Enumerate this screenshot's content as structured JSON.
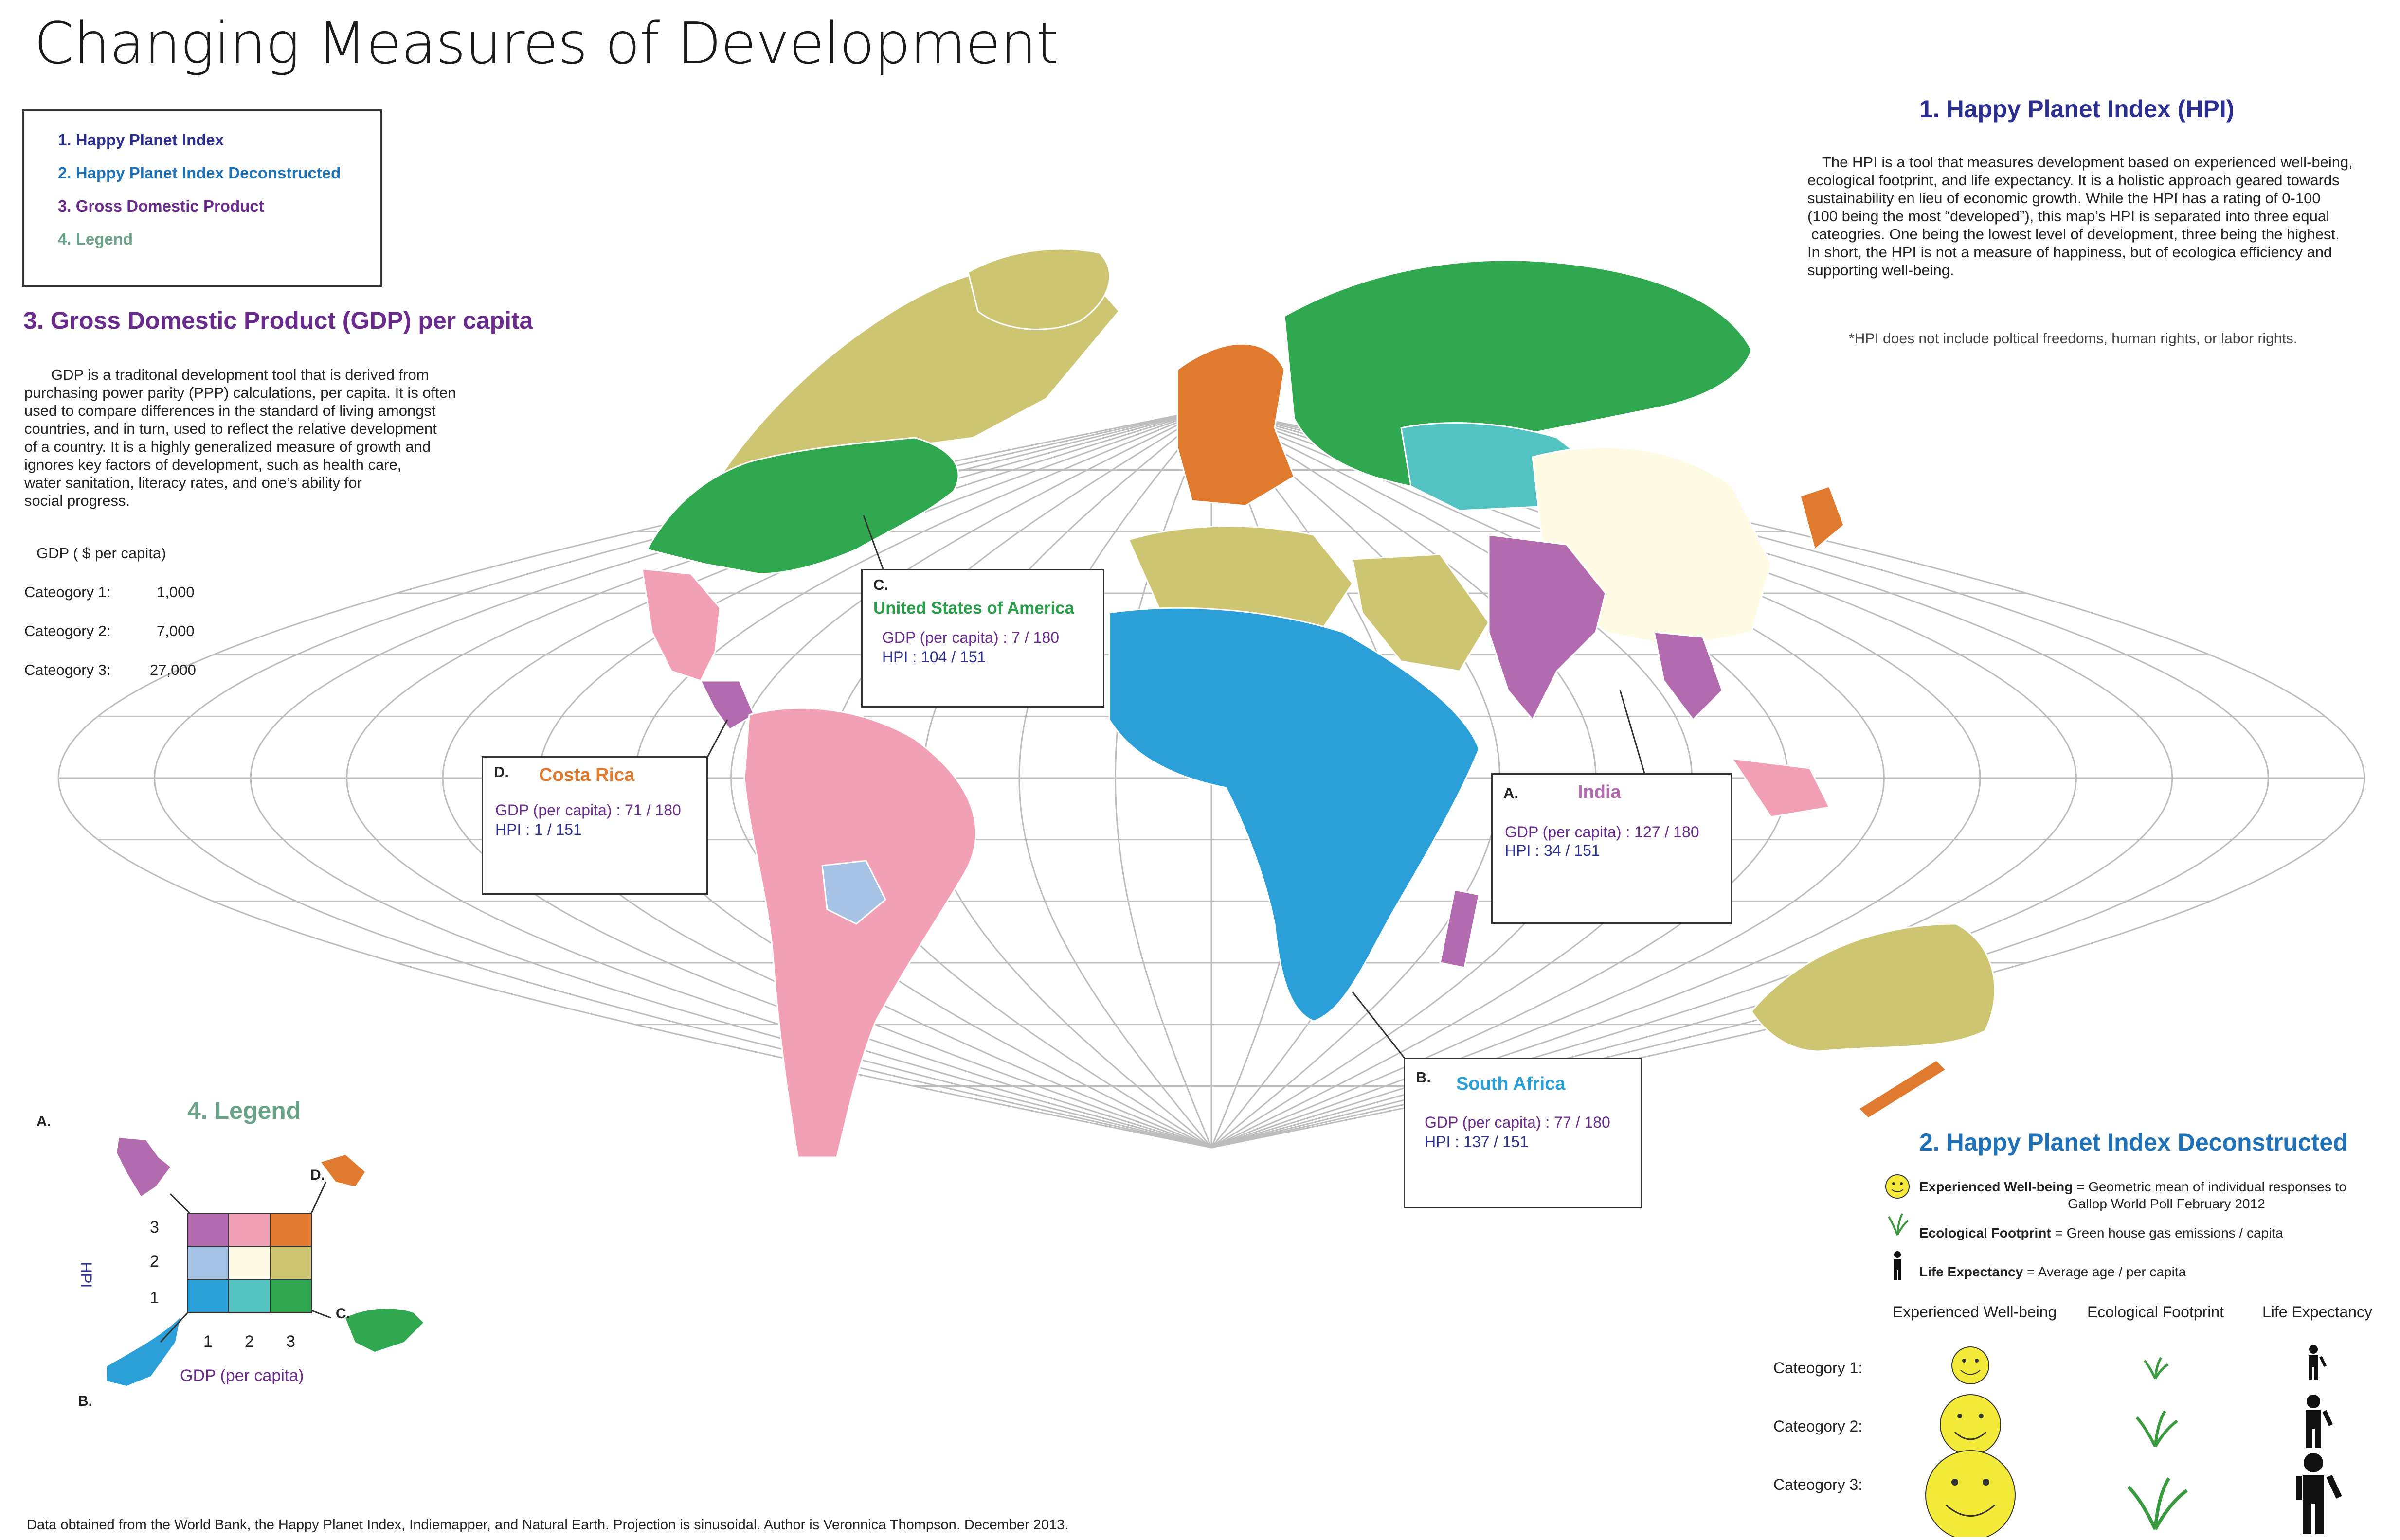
{
  "title": "Changing Measures of Development",
  "toc": [
    "1. Happy Planet Index",
    "2. Happy Planet Index Deconstructed",
    "3. Gross Domestic Product",
    "4. Legend"
  ],
  "hpi_section": {
    "heading": "1. Happy Planet Index (HPI)",
    "lines": [
      "The HPI is a tool that measures development based on experienced well-being,",
      "ecological footprint, and life expectancy. It is a holistic approach geared towards",
      "sustainability en lieu of economic growth. While the HPI has a rating of 0-100",
      "(100 being the most “developed”), this map’s HPI is separated into three equal",
      "cateogries. One being the lowest level of development, three being the highest.",
      "In short, the HPI is not a measure of happiness, but of ecologica efficiency and",
      "supporting well-being."
    ],
    "note": "*HPI does not include poltical freedoms, human rights, or labor rights."
  },
  "gdp_section": {
    "heading": "3. Gross Domestic Product (GDP) per capita",
    "lines": [
      "GDP is a traditonal development tool that is derived from",
      "purchasing power parity (PPP) calculations, per capita. It is often",
      "used to compare differences in the standard of living amongst",
      "countries, and in turn, used to reflect the relative development",
      "of a country. It is a highly generalized measure of growth and",
      "ignores key factors of development, such as health care,",
      "water sanitation, literacy rates, and one’s ability for",
      "social progress."
    ],
    "unit_label": "GDP ( $ per capita)",
    "categories": [
      {
        "label": "Cateogory 1:",
        "value": "1,000"
      },
      {
        "label": "Cateogory 2:",
        "value": "7,000"
      },
      {
        "label": "Cateogory 3:",
        "value": "27,000"
      }
    ]
  },
  "callouts": {
    "usa": {
      "letter": "C.",
      "name": "United States of America",
      "gdp": "GDP (per capita) : 7 / 180",
      "hpi": "HPI : 104 / 151",
      "name_color": "#2a9d4a"
    },
    "costa_rica": {
      "letter": "D.",
      "name": "Costa Rica",
      "gdp": "GDP (per capita) : 71 / 180",
      "hpi": "HPI : 1 / 151",
      "name_color": "#e07a2e"
    },
    "india": {
      "letter": "A.",
      "name": "India",
      "gdp": "GDP (per capita) : 127 / 180",
      "hpi": "HPI :  34 / 151",
      "name_color": "#b36bb0"
    },
    "south_africa": {
      "letter": "B.",
      "name": "South Africa",
      "gdp": "GDP (per capita) : 77 / 180",
      "hpi": "HPI : 137 / 151",
      "name_color": "#2a9fd8"
    }
  },
  "legend": {
    "heading": "4. Legend",
    "y_axis": "HPI",
    "x_axis": "GDP (per capita)",
    "y_ticks": [
      "3",
      "2",
      "1"
    ],
    "x_ticks": [
      "1",
      "2",
      "3"
    ],
    "corner_labels": [
      "A.",
      "B.",
      "C.",
      "D."
    ],
    "grid_colors": [
      [
        "#b36bb0",
        "#f2a0b5",
        "#e07a2e"
      ],
      [
        "#a6c2e4",
        "#fefbe4",
        "#cdc572"
      ],
      [
        "#2a9fd8",
        "#53c3c1",
        "#2fa84f"
      ]
    ]
  },
  "deconstructed": {
    "heading": "2. Happy Planet Index Deconstructed",
    "defs": [
      {
        "term": "Experienced Well-being",
        "desc": " = Geometric mean of individual responses to",
        "desc2": "Gallop World Poll February 2012",
        "icon": "smiley-icon"
      },
      {
        "term": "Ecological Footprint",
        "desc": " = Green house gas emissions / capita",
        "icon": "grass-icon"
      },
      {
        "term": "Life Expectancy",
        "desc": " = Average age / per capita",
        "icon": "person-icon"
      }
    ],
    "columns": [
      "Experienced Well-being",
      "Ecological Footprint",
      "Life Expectancy"
    ],
    "rows": [
      "Cateogory 1:",
      "Cateogory 2:",
      "Cateogory 3:"
    ]
  },
  "footer": "Data obtained from the World Bank, the Happy Planet Index, Indiemapper, and Natural Earth. Projection is sinusoidal. Author is Veronnica Thompson. December 2013.",
  "colors": {
    "hpi3_gdp1": "#b36bb0",
    "hpi3_gdp2": "#f2a0b5",
    "hpi3_gdp3": "#e07a2e",
    "hpi2_gdp1": "#a6c2e4",
    "hpi2_gdp2": "#fefbe4",
    "hpi2_gdp3": "#cdc572",
    "hpi1_gdp1": "#2a9fd8",
    "hpi1_gdp2": "#53c3c1",
    "hpi1_gdp3": "#2fa84f"
  }
}
